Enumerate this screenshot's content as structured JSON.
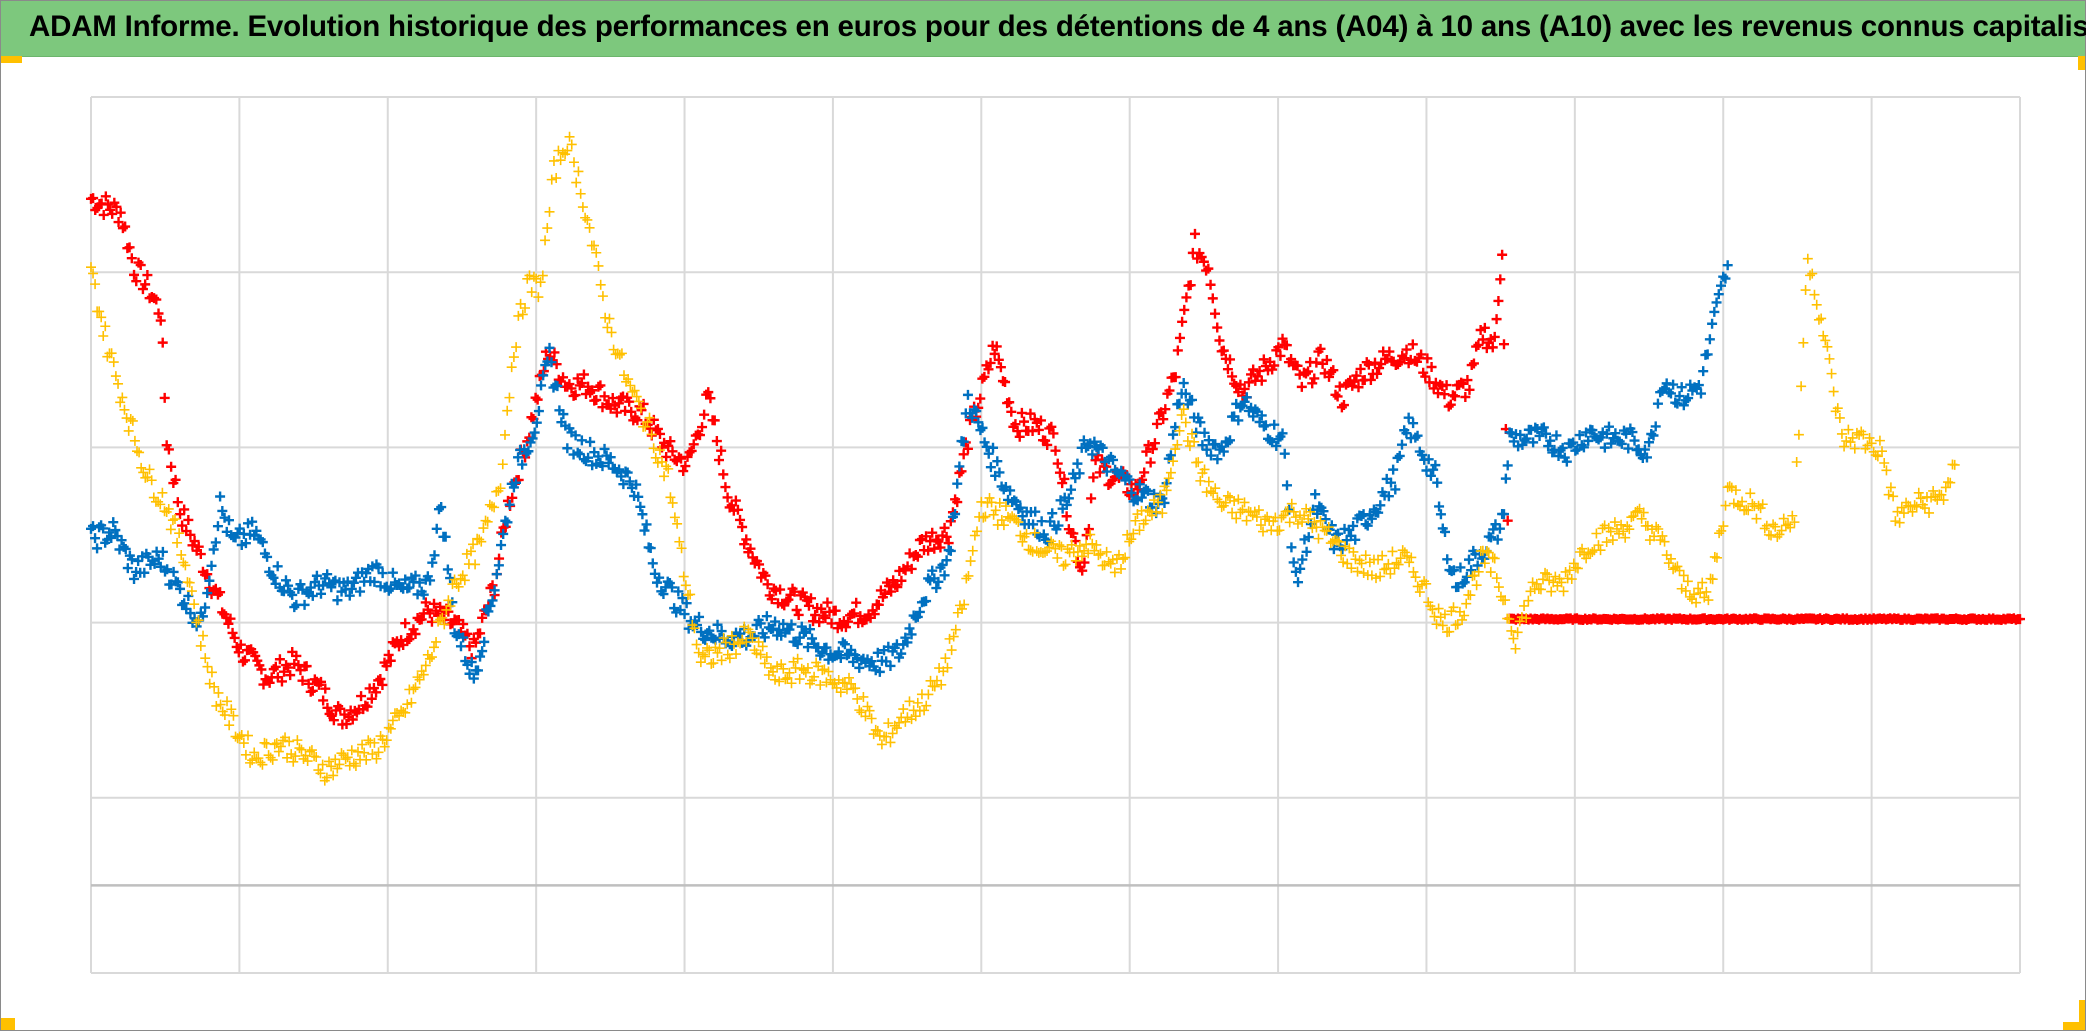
{
  "title": "ADAM Informe. Evolution historique des performances en euros pour des détentions de 4 ans (A04) à 10 ans (A10) avec les revenus connus capitalisés",
  "colors": {
    "title_bar": "#7dc87d",
    "corner_accent": "#ffc000",
    "grid": "#d9d9d9",
    "zero_line": "#bfbfbf"
  },
  "chart_data": {
    "type": "scatter",
    "title": "ADAM Informe. Evolution historique des performances en euros pour des détentions de 4 ans (A04) à 10 ans (A10) avec les revenus connus capitalisés",
    "xlabel": "",
    "ylabel": "",
    "xlim": [
      0,
      1300
    ],
    "ylim": [
      -100,
      400
    ],
    "x_gridlines": 13,
    "y_gridlines": [
      0,
      100,
      200,
      300,
      400
    ],
    "baseline": -50,
    "grid": true,
    "legend": "none",
    "marker": "plus",
    "series": [
      {
        "name": "red",
        "color": "#ff0000",
        "points": [
          [
            0,
            342
          ],
          [
            20,
            334
          ],
          [
            29,
            303
          ],
          [
            38,
            292
          ],
          [
            47,
            277
          ],
          [
            51,
            205
          ],
          [
            60,
            164
          ],
          [
            74,
            137
          ],
          [
            87,
            111
          ],
          [
            101,
            84
          ],
          [
            119,
            69
          ],
          [
            137,
            77
          ],
          [
            155,
            61
          ],
          [
            168,
            46
          ],
          [
            182,
            54
          ],
          [
            195,
            69
          ],
          [
            209,
            92
          ],
          [
            227,
            107
          ],
          [
            245,
            99
          ],
          [
            258,
            84
          ],
          [
            272,
            122
          ],
          [
            281,
            167
          ],
          [
            294,
            205
          ],
          [
            308,
            255
          ],
          [
            321,
            236
          ],
          [
            335,
            236
          ],
          [
            353,
            224
          ],
          [
            371,
            220
          ],
          [
            389,
            198
          ],
          [
            402,
            190
          ],
          [
            416,
            228
          ],
          [
            429,
            175
          ],
          [
            443,
            145
          ],
          [
            456,
            122
          ],
          [
            470,
            114
          ],
          [
            488,
            107
          ],
          [
            506,
            103
          ],
          [
            524,
            107
          ],
          [
            542,
            122
          ],
          [
            560,
            145
          ],
          [
            578,
            152
          ],
          [
            591,
            205
          ],
          [
            609,
            258
          ],
          [
            623,
            213
          ],
          [
            636,
            213
          ],
          [
            650,
            205
          ],
          [
            659,
            160
          ],
          [
            668,
            130
          ],
          [
            677,
            190
          ],
          [
            690,
            183
          ],
          [
            704,
            175
          ],
          [
            717,
            205
          ],
          [
            731,
            243
          ],
          [
            744,
            315
          ],
          [
            753,
            304
          ],
          [
            762,
            258
          ],
          [
            776,
            232
          ],
          [
            789,
            243
          ],
          [
            803,
            258
          ],
          [
            816,
            236
          ],
          [
            830,
            251
          ],
          [
            843,
            228
          ],
          [
            857,
            243
          ],
          [
            875,
            251
          ],
          [
            888,
            255
          ],
          [
            902,
            243
          ],
          [
            915,
            228
          ],
          [
            929,
            236
          ],
          [
            938,
            266
          ],
          [
            946,
            258
          ],
          [
            951,
            315
          ],
          [
            956,
            102
          ],
          [
            1000,
            102
          ],
          [
            1050,
            102
          ],
          [
            1100,
            102
          ],
          [
            1150,
            102
          ],
          [
            1200,
            102
          ],
          [
            1250,
            102
          ],
          [
            1300,
            102
          ]
        ]
      },
      {
        "name": "blue",
        "color": "#0070c0",
        "points": [
          [
            0,
            148
          ],
          [
            15,
            152
          ],
          [
            29,
            130
          ],
          [
            47,
            137
          ],
          [
            60,
            118
          ],
          [
            74,
            99
          ],
          [
            87,
            167
          ],
          [
            96,
            145
          ],
          [
            110,
            152
          ],
          [
            123,
            130
          ],
          [
            137,
            114
          ],
          [
            155,
            122
          ],
          [
            173,
            118
          ],
          [
            191,
            130
          ],
          [
            209,
            118
          ],
          [
            227,
            122
          ],
          [
            236,
            167
          ],
          [
            245,
            99
          ],
          [
            258,
            69
          ],
          [
            272,
            122
          ],
          [
            285,
            183
          ],
          [
            299,
            213
          ],
          [
            309,
            251
          ],
          [
            321,
            205
          ],
          [
            335,
            198
          ],
          [
            353,
            190
          ],
          [
            366,
            179
          ],
          [
            380,
            130
          ],
          [
            393,
            114
          ],
          [
            407,
            99
          ],
          [
            425,
            92
          ],
          [
            443,
            92
          ],
          [
            461,
            99
          ],
          [
            479,
            92
          ],
          [
            497,
            84
          ],
          [
            515,
            80
          ],
          [
            533,
            77
          ],
          [
            546,
            84
          ],
          [
            560,
            114
          ],
          [
            578,
            137
          ],
          [
            591,
            228
          ],
          [
            605,
            198
          ],
          [
            618,
            175
          ],
          [
            632,
            160
          ],
          [
            645,
            152
          ],
          [
            659,
            171
          ],
          [
            672,
            205
          ],
          [
            686,
            190
          ],
          [
            704,
            175
          ],
          [
            722,
            167
          ],
          [
            735,
            236
          ],
          [
            749,
            205
          ],
          [
            762,
            198
          ],
          [
            776,
            228
          ],
          [
            789,
            213
          ],
          [
            803,
            205
          ],
          [
            812,
            122
          ],
          [
            825,
            167
          ],
          [
            839,
            145
          ],
          [
            852,
            152
          ],
          [
            866,
            167
          ],
          [
            879,
            183
          ],
          [
            888,
            213
          ],
          [
            897,
            198
          ],
          [
            906,
            183
          ],
          [
            911,
            152
          ],
          [
            920,
            122
          ],
          [
            933,
            137
          ],
          [
            942,
            145
          ],
          [
            951,
            156
          ],
          [
            956,
            205
          ],
          [
            969,
            205
          ],
          [
            982,
            205
          ],
          [
            996,
            198
          ],
          [
            1009,
            209
          ],
          [
            1023,
            205
          ],
          [
            1036,
            205
          ],
          [
            1050,
            198
          ],
          [
            1059,
            239
          ],
          [
            1072,
            228
          ],
          [
            1085,
            236
          ],
          [
            1094,
            273
          ],
          [
            1103,
            304
          ]
        ]
      },
      {
        "name": "yellow",
        "color": "#ffc000",
        "points": [
          [
            0,
            300
          ],
          [
            11,
            258
          ],
          [
            24,
            220
          ],
          [
            38,
            183
          ],
          [
            51,
            167
          ],
          [
            65,
            130
          ],
          [
            74,
            92
          ],
          [
            83,
            61
          ],
          [
            96,
            42
          ],
          [
            110,
            23
          ],
          [
            128,
            31
          ],
          [
            146,
            23
          ],
          [
            159,
            16
          ],
          [
            173,
            23
          ],
          [
            191,
            27
          ],
          [
            209,
            46
          ],
          [
            227,
            77
          ],
          [
            245,
            122
          ],
          [
            263,
            145
          ],
          [
            276,
            183
          ],
          [
            285,
            258
          ],
          [
            294,
            292
          ],
          [
            303,
            292
          ],
          [
            312,
            357
          ],
          [
            321,
            376
          ],
          [
            330,
            349
          ],
          [
            339,
            311
          ],
          [
            348,
            273
          ],
          [
            362,
            236
          ],
          [
            375,
            213
          ],
          [
            389,
            183
          ],
          [
            398,
            137
          ],
          [
            411,
            77
          ],
          [
            425,
            84
          ],
          [
            443,
            92
          ],
          [
            461,
            69
          ],
          [
            479,
            73
          ],
          [
            497,
            69
          ],
          [
            515,
            61
          ],
          [
            533,
            31
          ],
          [
            546,
            46
          ],
          [
            560,
            54
          ],
          [
            573,
            69
          ],
          [
            587,
            107
          ],
          [
            600,
            167
          ],
          [
            618,
            160
          ],
          [
            636,
            145
          ],
          [
            654,
            137
          ],
          [
            672,
            145
          ],
          [
            690,
            130
          ],
          [
            708,
            160
          ],
          [
            722,
            167
          ],
          [
            735,
            220
          ],
          [
            749,
            183
          ],
          [
            762,
            167
          ],
          [
            776,
            164
          ],
          [
            794,
            156
          ],
          [
            812,
            164
          ],
          [
            830,
            152
          ],
          [
            848,
            137
          ],
          [
            866,
            130
          ],
          [
            884,
            137
          ],
          [
            897,
            122
          ],
          [
            911,
            99
          ],
          [
            924,
            107
          ],
          [
            938,
            137
          ],
          [
            946,
            130
          ],
          [
            960,
            92
          ],
          [
            973,
            122
          ],
          [
            991,
            122
          ],
          [
            1009,
            145
          ],
          [
            1027,
            152
          ],
          [
            1045,
            160
          ],
          [
            1059,
            145
          ],
          [
            1072,
            122
          ],
          [
            1090,
            114
          ],
          [
            1103,
            175
          ],
          [
            1121,
            167
          ],
          [
            1135,
            152
          ],
          [
            1148,
            160
          ],
          [
            1157,
            311
          ],
          [
            1166,
            273
          ],
          [
            1180,
            205
          ],
          [
            1193,
            205
          ],
          [
            1207,
            198
          ],
          [
            1216,
            160
          ],
          [
            1229,
            167
          ],
          [
            1247,
            171
          ],
          [
            1256,
            190
          ]
        ]
      }
    ]
  }
}
